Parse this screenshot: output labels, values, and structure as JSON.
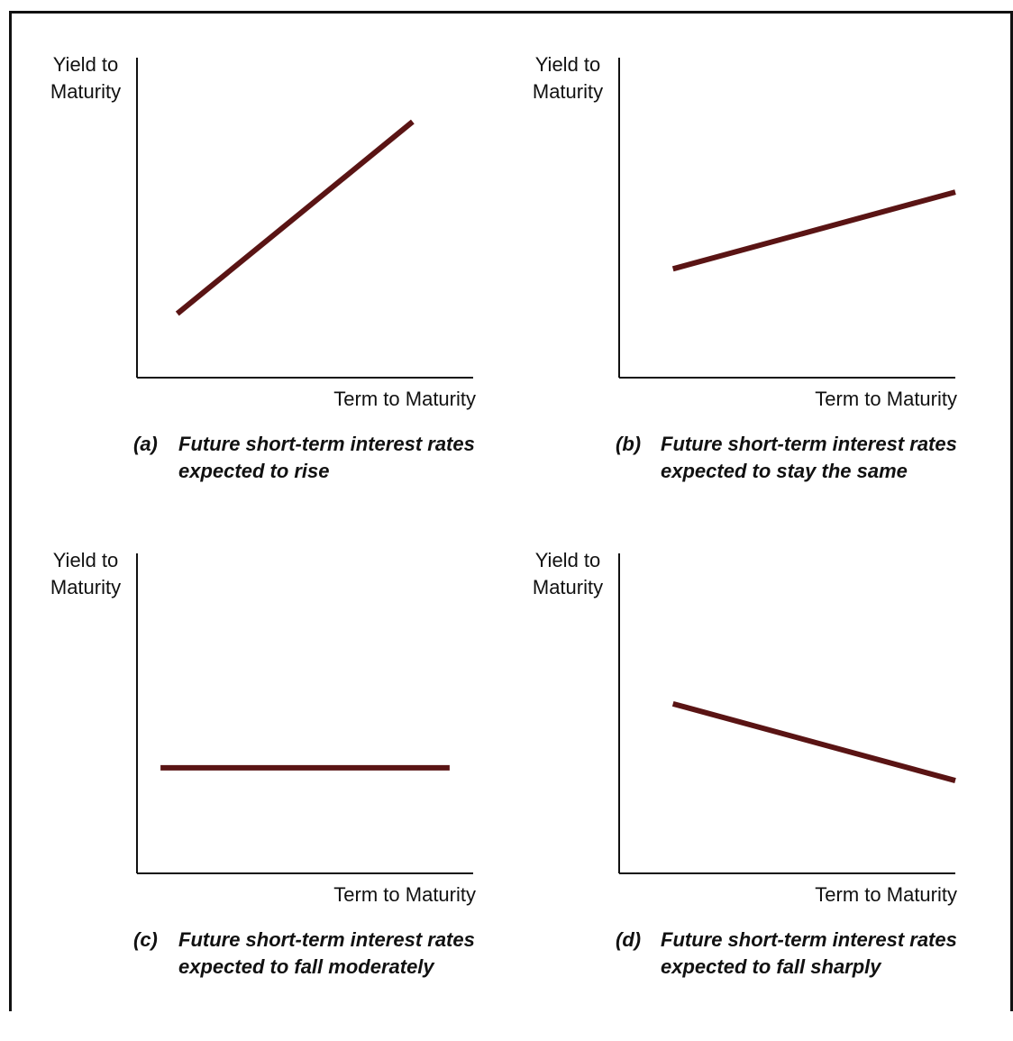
{
  "panels": [
    {
      "id": "a",
      "y_label_line1": "Yield to",
      "y_label_line2": "Maturity",
      "x_label": "Term to Maturity",
      "caption_letter": "(a)",
      "caption_line1": "Future short-term interest rates",
      "caption_line2": "expected to rise",
      "curve": {
        "x": [
          0.12,
          0.82
        ],
        "y": [
          0.2,
          0.8
        ]
      }
    },
    {
      "id": "b",
      "y_label_line1": "Yield to",
      "y_label_line2": "Maturity",
      "x_label": "Term to Maturity",
      "caption_letter": "(b)",
      "caption_line1": "Future short-term interest rates",
      "caption_line2": "expected to stay the same",
      "curve": {
        "x": [
          0.16,
          1.0
        ],
        "y": [
          0.34,
          0.58
        ]
      }
    },
    {
      "id": "c",
      "y_label_line1": "Yield to",
      "y_label_line2": "Maturity",
      "x_label": "Term to Maturity",
      "caption_letter": "(c)",
      "caption_line1": "Future short-term interest rates",
      "caption_line2": "expected to fall moderately",
      "curve": {
        "x": [
          0.07,
          0.93
        ],
        "y": [
          0.33,
          0.33
        ]
      }
    },
    {
      "id": "d",
      "y_label_line1": "Yield to",
      "y_label_line2": "Maturity",
      "x_label": "Term to Maturity",
      "caption_letter": "(d)",
      "caption_line1": "Future short-term interest rates",
      "caption_line2": "expected to fall sharply",
      "curve": {
        "x": [
          0.16,
          1.0
        ],
        "y": [
          0.53,
          0.29
        ]
      }
    }
  ],
  "colors": {
    "curve": "#5a1414",
    "axis": "#111111"
  }
}
